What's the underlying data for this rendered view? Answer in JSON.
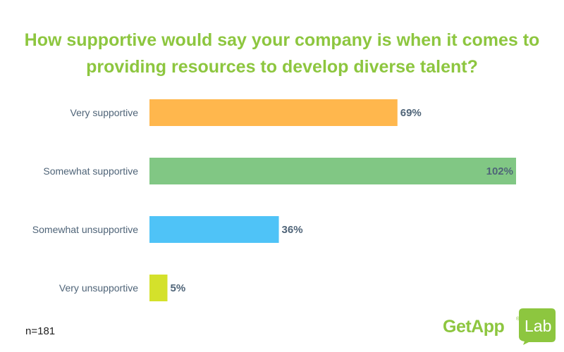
{
  "chart_data": {
    "type": "bar",
    "orientation": "horizontal",
    "title_lines": [
      "How supportive would say your company is when it comes to",
      "providing resources to develop diverse talent?"
    ],
    "categories": [
      "Very supportive",
      "Somewhat supportive",
      "Somewhat unsupportive",
      "Very unsupportive"
    ],
    "values": [
      69,
      102,
      36,
      5
    ],
    "value_labels": [
      "69%",
      "102%",
      "36%",
      "5%"
    ],
    "colors": [
      "#ffb74d",
      "#81c784",
      "#4fc3f7",
      "#d4e12b"
    ],
    "xlim": [
      0,
      102
    ],
    "grid": false,
    "legend": false
  },
  "footnote": "n=181",
  "logo": {
    "brand": "GetApp",
    "reg": "®",
    "sub": "Lab",
    "color": "#8dc63f"
  },
  "colors": {
    "title": "#8dc63f",
    "label": "#4f6478"
  }
}
